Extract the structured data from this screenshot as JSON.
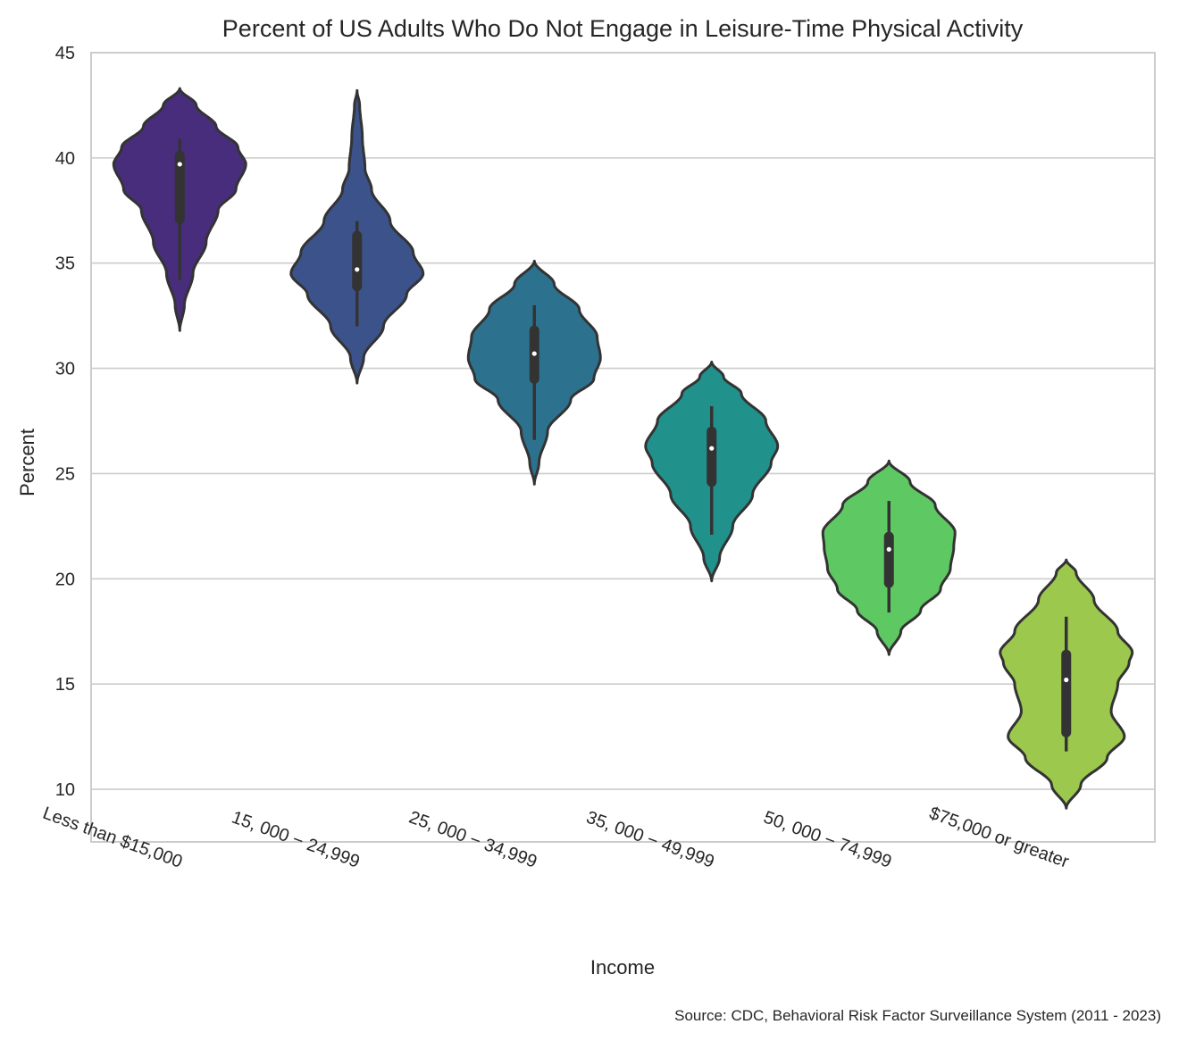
{
  "chart_data": {
    "type": "violin",
    "title": "Percent of US Adults Who Do Not Engage in Leisure-Time Physical Activity",
    "xlabel": "Income",
    "ylabel": "Percent",
    "ylim": [
      7.5,
      45
    ],
    "yticks": [
      10,
      15,
      20,
      25,
      30,
      35,
      40,
      45
    ],
    "grid": true,
    "source": "Source: CDC, Behavioral Risk Factor Surveillance System (2011 - 2023)",
    "categories": [
      "Less than $15,000",
      "15, 000 − 24,999",
      "25, 000 − 34,999",
      "35, 000 − 49,999",
      "50, 000 − 74,999",
      "$75,000 or greater"
    ],
    "series": [
      {
        "color": "#472d7b",
        "min": 34.2,
        "q1": 37.1,
        "median": 39.7,
        "q3": 40.1,
        "max": 40.9,
        "profile": [
          [
            31.8,
            0
          ],
          [
            33,
            0.07
          ],
          [
            34.5,
            0.2
          ],
          [
            36,
            0.4
          ],
          [
            37.5,
            0.58
          ],
          [
            38.5,
            0.85
          ],
          [
            39.7,
            1.0
          ],
          [
            40.5,
            0.88
          ],
          [
            41.5,
            0.55
          ],
          [
            42.5,
            0.25
          ],
          [
            43.3,
            0
          ]
        ]
      },
      {
        "color": "#3b528b",
        "min": 32.0,
        "q1": 33.9,
        "median": 34.7,
        "q3": 36.3,
        "max": 37.0,
        "profile": [
          [
            29.3,
            0
          ],
          [
            30.5,
            0.1
          ],
          [
            32,
            0.4
          ],
          [
            33.5,
            0.75
          ],
          [
            34.5,
            1.0
          ],
          [
            35.5,
            0.85
          ],
          [
            37,
            0.5
          ],
          [
            38.5,
            0.22
          ],
          [
            39.5,
            0.12
          ],
          [
            41,
            0.08
          ],
          [
            42.5,
            0.04
          ],
          [
            43.2,
            0
          ]
        ]
      },
      {
        "color": "#2c728e",
        "min": 26.6,
        "q1": 29.5,
        "median": 30.7,
        "q3": 31.8,
        "max": 33.0,
        "profile": [
          [
            24.5,
            0
          ],
          [
            25.5,
            0.07
          ],
          [
            27,
            0.2
          ],
          [
            28.5,
            0.55
          ],
          [
            29.5,
            0.9
          ],
          [
            30.5,
            1.0
          ],
          [
            31.5,
            0.95
          ],
          [
            32.8,
            0.68
          ],
          [
            34,
            0.3
          ],
          [
            35.1,
            0
          ]
        ]
      },
      {
        "color": "#21918c",
        "min": 22.1,
        "q1": 24.6,
        "median": 26.2,
        "q3": 27.0,
        "max": 28.2,
        "profile": [
          [
            19.9,
            0
          ],
          [
            21,
            0.12
          ],
          [
            22.5,
            0.32
          ],
          [
            24,
            0.62
          ],
          [
            25.5,
            0.9
          ],
          [
            26.3,
            1.0
          ],
          [
            27.5,
            0.82
          ],
          [
            28.8,
            0.45
          ],
          [
            29.6,
            0.18
          ],
          [
            30.3,
            0
          ]
        ]
      },
      {
        "color": "#5ec962",
        "min": 18.4,
        "q1": 19.8,
        "median": 21.4,
        "q3": 22.0,
        "max": 23.7,
        "profile": [
          [
            16.4,
            0
          ],
          [
            17.5,
            0.18
          ],
          [
            18.5,
            0.48
          ],
          [
            19.5,
            0.78
          ],
          [
            20.5,
            0.93
          ],
          [
            21.5,
            0.98
          ],
          [
            22.2,
            1.0
          ],
          [
            23.5,
            0.7
          ],
          [
            24.6,
            0.32
          ],
          [
            25.6,
            0
          ]
        ]
      },
      {
        "color": "#9bc84d",
        "min": 11.8,
        "q1": 12.7,
        "median": 15.2,
        "q3": 16.4,
        "max": 18.2,
        "profile": [
          [
            9.1,
            0
          ],
          [
            10.2,
            0.22
          ],
          [
            11.5,
            0.62
          ],
          [
            12.5,
            0.88
          ],
          [
            13.7,
            0.68
          ],
          [
            15,
            0.78
          ],
          [
            16,
            0.95
          ],
          [
            16.5,
            1.0
          ],
          [
            17.5,
            0.78
          ],
          [
            19,
            0.42
          ],
          [
            20.3,
            0.15
          ],
          [
            20.9,
            0
          ]
        ]
      }
    ]
  }
}
